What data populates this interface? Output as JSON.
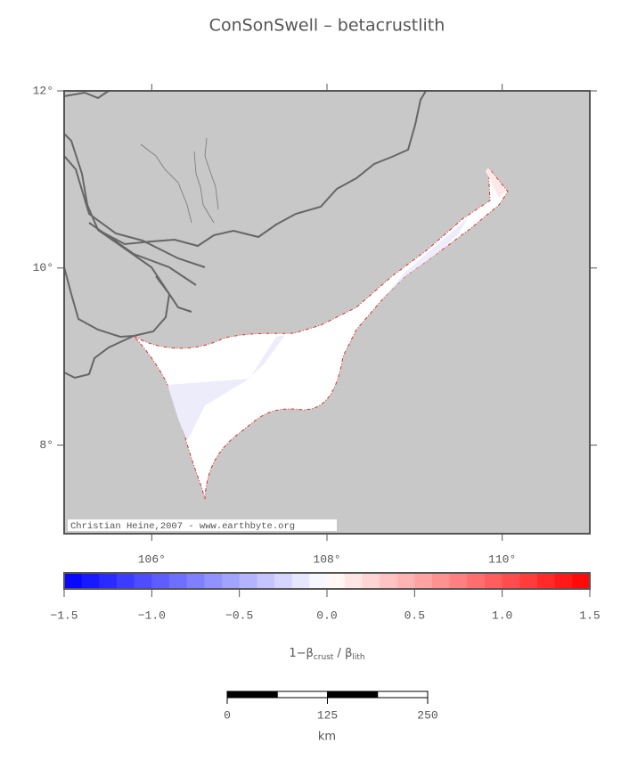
{
  "title": "ConSonSwell – betacrustlith",
  "map": {
    "lonlim": [
      105,
      111
    ],
    "latlim": [
      7,
      12
    ],
    "lon_ticks": [
      {
        "value": 106,
        "label": "106°"
      },
      {
        "value": 108,
        "label": "108°"
      },
      {
        "value": 110,
        "label": "110°"
      }
    ],
    "lat_ticks": [
      {
        "value": 8,
        "label": "8°"
      },
      {
        "value": 10,
        "label": "10°"
      },
      {
        "value": 12,
        "label": "12°"
      }
    ],
    "credit": "Christian Heine,2007 - www.earthbyte.org"
  },
  "colorbar": {
    "lim": [
      -1.5,
      1.5
    ],
    "ticks": [
      {
        "value": -1.5,
        "label": "−1.5"
      },
      {
        "value": -1,
        "label": "−1.0"
      },
      {
        "value": -0.5,
        "label": "−0.5"
      },
      {
        "value": 0,
        "label": "0.0"
      },
      {
        "value": 0.5,
        "label": "0.5"
      },
      {
        "value": 1,
        "label": "1.0"
      },
      {
        "value": 1.5,
        "label": "1.5"
      }
    ],
    "label": [
      "1−β",
      "crust",
      " / β",
      "lith"
    ]
  },
  "scale_bar": {
    "lim": [
      0,
      250
    ],
    "ticks": [
      0,
      125,
      250
    ],
    "unit": "km"
  }
}
